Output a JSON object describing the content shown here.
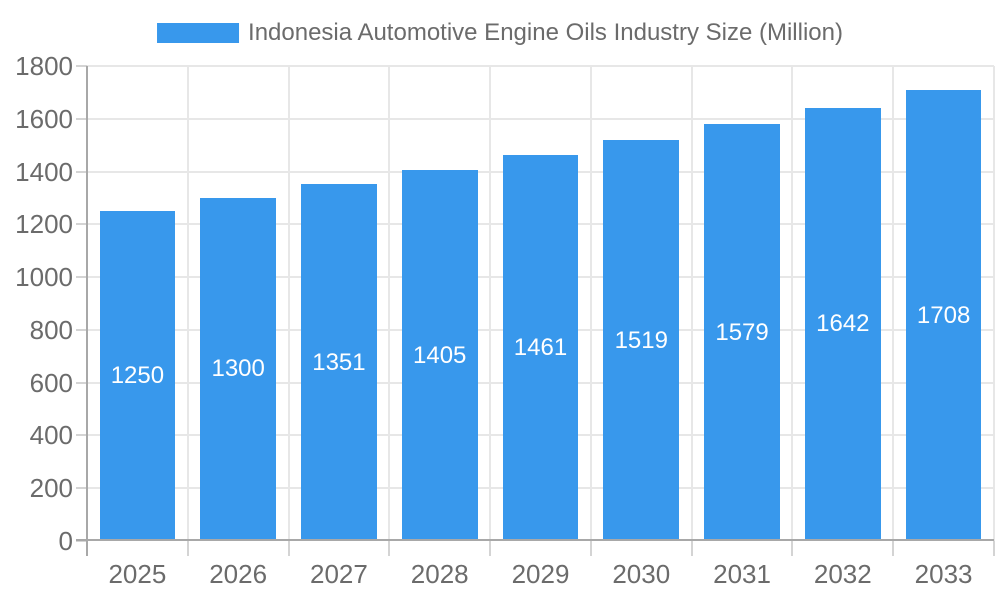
{
  "chart_data": {
    "type": "bar",
    "title": "Indonesia Automotive Engine Oils Industry Size (Million)",
    "legend": "Indonesia Automotive Engine Oils Industry Size (Million)",
    "legend_position": "top-center",
    "categories": [
      "2025",
      "2026",
      "2027",
      "2028",
      "2029",
      "2030",
      "2031",
      "2032",
      "2033"
    ],
    "values": [
      1250,
      1300,
      1351,
      1405,
      1461,
      1519,
      1579,
      1642,
      1708
    ],
    "xlabel": "",
    "ylabel": "",
    "ylim": [
      0,
      1800
    ],
    "ytick_step": 200,
    "yticks": [
      0,
      200,
      400,
      600,
      800,
      1000,
      1200,
      1400,
      1600,
      1800
    ],
    "grid": true,
    "value_labels_inside_bars": true,
    "colors": {
      "bar": "#3898ec",
      "bar_label": "#ffffff",
      "axis_text": "#6b6b6b",
      "gridline": "#e7e7e7",
      "axis_line": "#a8a8a8",
      "tick_mark": "#d4d4d4",
      "background": "#ffffff"
    }
  }
}
